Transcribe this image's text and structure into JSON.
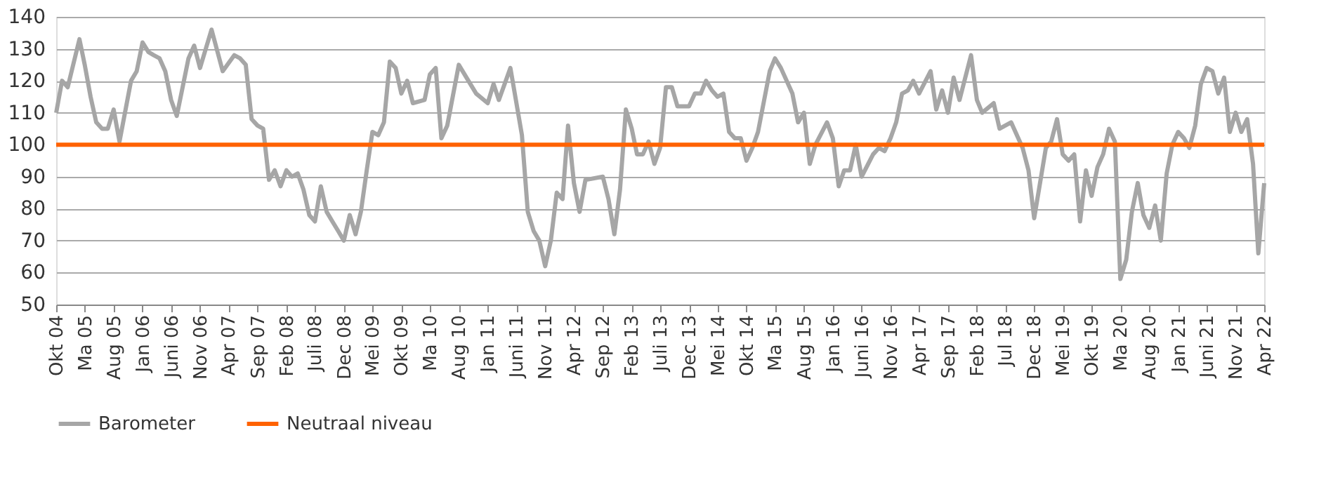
{
  "chart_data": {
    "type": "line",
    "series": [
      {
        "name": "Barometer",
        "color": "#a6a6a6",
        "x": [
          "2004-10",
          "2004-11",
          "2004-12",
          "2005-02",
          "2005-03",
          "2005-04",
          "2005-05",
          "2005-06",
          "2005-07",
          "2005-08",
          "2005-09",
          "2005-11",
          "2005-12",
          "2006-01",
          "2006-02",
          "2006-03",
          "2006-04",
          "2006-05",
          "2006-06",
          "2006-07",
          "2006-08",
          "2006-09",
          "2006-10",
          "2006-11",
          "2007-01",
          "2007-03",
          "2007-05",
          "2007-06",
          "2007-07",
          "2007-08",
          "2007-09",
          "2007-10",
          "2007-11",
          "2007-12",
          "2008-01",
          "2008-02",
          "2008-03",
          "2008-04",
          "2008-05",
          "2008-06",
          "2008-07",
          "2008-08",
          "2008-09",
          "2008-10",
          "2008-11",
          "2008-12",
          "2009-01",
          "2009-02",
          "2009-03",
          "2009-04",
          "2009-05",
          "2009-06",
          "2009-07",
          "2009-08",
          "2009-09",
          "2009-10",
          "2009-11",
          "2009-12",
          "2010-02",
          "2010-03",
          "2010-04",
          "2010-05",
          "2010-06",
          "2010-08",
          "2010-10",
          "2010-11",
          "2011-01",
          "2011-02",
          "2011-03",
          "2011-05",
          "2011-07",
          "2011-08",
          "2011-09",
          "2011-10",
          "2011-11",
          "2011-12",
          "2012-01",
          "2012-02",
          "2012-03",
          "2012-04",
          "2012-05",
          "2012-06",
          "2012-09",
          "2012-10",
          "2012-11",
          "2012-12",
          "2013-01",
          "2013-02",
          "2013-03",
          "2013-04",
          "2013-05",
          "2013-06",
          "2013-07",
          "2013-08",
          "2013-09",
          "2013-10",
          "2013-12",
          "2014-01",
          "2014-02",
          "2014-03",
          "2014-04",
          "2014-05",
          "2014-06",
          "2014-07",
          "2014-08",
          "2014-09",
          "2014-10",
          "2014-11",
          "2014-12",
          "2015-02",
          "2015-03",
          "2015-04",
          "2015-06",
          "2015-07",
          "2015-08",
          "2015-09",
          "2015-10",
          "2015-12",
          "2016-01",
          "2016-02",
          "2016-03",
          "2016-04",
          "2016-05",
          "2016-06",
          "2016-08",
          "2016-09",
          "2016-10",
          "2016-11",
          "2016-12",
          "2017-01",
          "2017-02",
          "2017-03",
          "2017-04",
          "2017-06",
          "2017-07",
          "2017-08",
          "2017-09",
          "2017-10",
          "2017-11",
          "2018-01",
          "2018-02",
          "2018-03",
          "2018-05",
          "2018-06",
          "2018-08",
          "2018-10",
          "2018-11",
          "2018-12",
          "2019-01",
          "2019-02",
          "2019-03",
          "2019-04",
          "2019-05",
          "2019-06",
          "2019-07",
          "2019-08",
          "2019-09",
          "2019-10",
          "2019-11",
          "2019-12",
          "2020-01",
          "2020-02",
          "2020-03",
          "2020-04",
          "2020-05",
          "2020-06",
          "2020-07",
          "2020-08",
          "2020-09",
          "2020-10",
          "2020-11",
          "2020-12",
          "2021-01",
          "2021-02",
          "2021-03",
          "2021-04",
          "2021-05",
          "2021-06",
          "2021-07",
          "2021-08",
          "2021-09",
          "2021-10",
          "2021-11",
          "2021-12",
          "2022-01",
          "2022-02",
          "2022-03",
          "2022-04"
        ],
        "values": [
          110,
          120,
          118,
          133,
          125,
          115,
          107,
          105,
          105,
          111,
          101,
          120,
          123,
          132,
          129,
          128,
          127,
          123,
          114,
          109,
          118,
          127,
          131,
          124,
          136,
          123,
          128,
          127,
          125,
          108,
          106,
          105,
          89,
          92,
          87,
          92,
          90,
          91,
          86,
          78,
          76,
          87,
          79,
          76,
          73,
          70,
          78,
          72,
          79,
          92,
          104,
          103,
          107,
          126,
          124,
          116,
          120,
          113,
          114,
          122,
          124,
          102,
          106,
          125,
          119,
          116,
          113,
          119,
          114,
          124,
          103,
          79,
          73,
          70,
          62,
          70,
          85,
          83,
          106,
          88,
          79,
          89,
          90,
          83,
          72,
          86,
          111,
          105,
          97,
          97,
          101,
          94,
          99,
          118,
          118,
          112,
          112,
          116,
          116,
          120,
          117,
          115,
          116,
          104,
          102,
          102,
          95,
          99,
          104,
          123,
          127,
          124,
          116,
          107,
          110,
          94,
          100,
          107,
          102,
          87,
          92,
          92,
          100,
          90,
          97,
          99,
          98,
          102,
          107,
          116,
          117,
          120,
          116,
          123,
          111,
          117,
          110,
          121,
          114,
          128,
          114,
          110,
          113,
          105,
          107,
          99,
          92,
          77,
          88,
          99,
          101,
          108,
          97,
          95,
          97,
          76,
          92,
          84,
          93,
          97,
          105,
          101,
          58,
          64,
          79,
          88,
          78,
          74,
          81,
          70,
          91,
          100,
          104,
          102,
          99,
          106,
          119,
          124,
          123,
          116,
          121,
          104,
          110,
          104,
          108,
          94,
          66,
          88
        ]
      },
      {
        "name": "Neutraal niveau",
        "color": "#ff6200",
        "x": [
          "2004-10",
          "2022-04"
        ],
        "values": [
          100,
          100
        ]
      }
    ],
    "xlim": [
      "2004-10",
      "2022-04"
    ],
    "xticks": [
      {
        "value": "2004-10",
        "label": "Okt 04"
      },
      {
        "value": "2005-03",
        "label": "Ma 05"
      },
      {
        "value": "2005-08",
        "label": "Aug 05"
      },
      {
        "value": "2006-01",
        "label": "Jan 06"
      },
      {
        "value": "2006-06",
        "label": "Juni 06"
      },
      {
        "value": "2006-11",
        "label": "Nov 06"
      },
      {
        "value": "2007-04",
        "label": "Apr 07"
      },
      {
        "value": "2007-09",
        "label": "Sep 07"
      },
      {
        "value": "2008-02",
        "label": "Feb 08"
      },
      {
        "value": "2008-07",
        "label": "Juli 08"
      },
      {
        "value": "2008-12",
        "label": "Dec 08"
      },
      {
        "value": "2009-05",
        "label": "Mei 09"
      },
      {
        "value": "2009-10",
        "label": "Okt 09"
      },
      {
        "value": "2010-03",
        "label": "Ma 10"
      },
      {
        "value": "2010-08",
        "label": "Aug 10"
      },
      {
        "value": "2011-01",
        "label": "Jan 11"
      },
      {
        "value": "2011-06",
        "label": "Juni 11"
      },
      {
        "value": "2011-11",
        "label": "Nov 11"
      },
      {
        "value": "2012-04",
        "label": "Apr 12"
      },
      {
        "value": "2012-09",
        "label": "Sep 12"
      },
      {
        "value": "2013-02",
        "label": "Feb 13"
      },
      {
        "value": "2013-07",
        "label": "Juli 13"
      },
      {
        "value": "2013-12",
        "label": "Dec 13"
      },
      {
        "value": "2014-05",
        "label": "Mei 14"
      },
      {
        "value": "2014-10",
        "label": "Okt 14"
      },
      {
        "value": "2015-03",
        "label": "Ma 15"
      },
      {
        "value": "2015-08",
        "label": "Aug 15"
      },
      {
        "value": "2016-01",
        "label": "Jan 16"
      },
      {
        "value": "2016-06",
        "label": "Juni 16"
      },
      {
        "value": "2016-11",
        "label": "Nov 16"
      },
      {
        "value": "2017-04",
        "label": "Apr 17"
      },
      {
        "value": "2017-09",
        "label": "Sep 17"
      },
      {
        "value": "2018-02",
        "label": "Feb 18"
      },
      {
        "value": "2018-07",
        "label": "Jul 18"
      },
      {
        "value": "2018-12",
        "label": "Dec 18"
      },
      {
        "value": "2019-05",
        "label": "Mei 19"
      },
      {
        "value": "2019-10",
        "label": "Okt 19"
      },
      {
        "value": "2020-03",
        "label": "Ma 20"
      },
      {
        "value": "2020-08",
        "label": "Aug 20"
      },
      {
        "value": "2021-01",
        "label": "Jan 21"
      },
      {
        "value": "2021-06",
        "label": "Juni 21"
      },
      {
        "value": "2021-11",
        "label": "Nov 21"
      },
      {
        "value": "2022-04",
        "label": "Apr 22"
      }
    ],
    "ylim": [
      50,
      140
    ],
    "yticks": [
      50,
      60,
      70,
      80,
      90,
      100,
      110,
      120,
      130,
      140
    ],
    "grid": "y",
    "legend": "bottom",
    "line_style": "solid",
    "marker": "none"
  }
}
